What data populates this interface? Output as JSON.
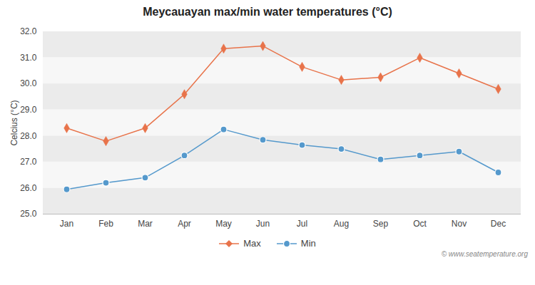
{
  "chart_data": {
    "type": "line",
    "title": "Meycauayan max/min water temperatures (°C)",
    "ylabel": "Celcius (°C)",
    "categories": [
      "Jan",
      "Feb",
      "Mar",
      "Apr",
      "May",
      "Jun",
      "Jul",
      "Aug",
      "Sep",
      "Oct",
      "Nov",
      "Dec"
    ],
    "series": [
      {
        "name": "Max",
        "color": "#e8734a",
        "marker": "diamond",
        "values": [
          28.3,
          27.8,
          28.3,
          29.6,
          31.35,
          31.45,
          30.65,
          30.15,
          30.25,
          31.0,
          30.4,
          29.8
        ]
      },
      {
        "name": "Min",
        "color": "#5599cc",
        "marker": "circle",
        "values": [
          25.95,
          26.2,
          26.4,
          27.25,
          28.25,
          27.85,
          27.65,
          27.5,
          27.1,
          27.25,
          27.4,
          26.6
        ]
      }
    ],
    "ylim": [
      25,
      32
    ],
    "yticks": [
      25,
      26,
      27,
      28,
      29,
      30,
      31,
      32
    ],
    "grid": true,
    "legend": "bottom",
    "annotations": [
      "© www.seatemperature.org"
    ]
  }
}
